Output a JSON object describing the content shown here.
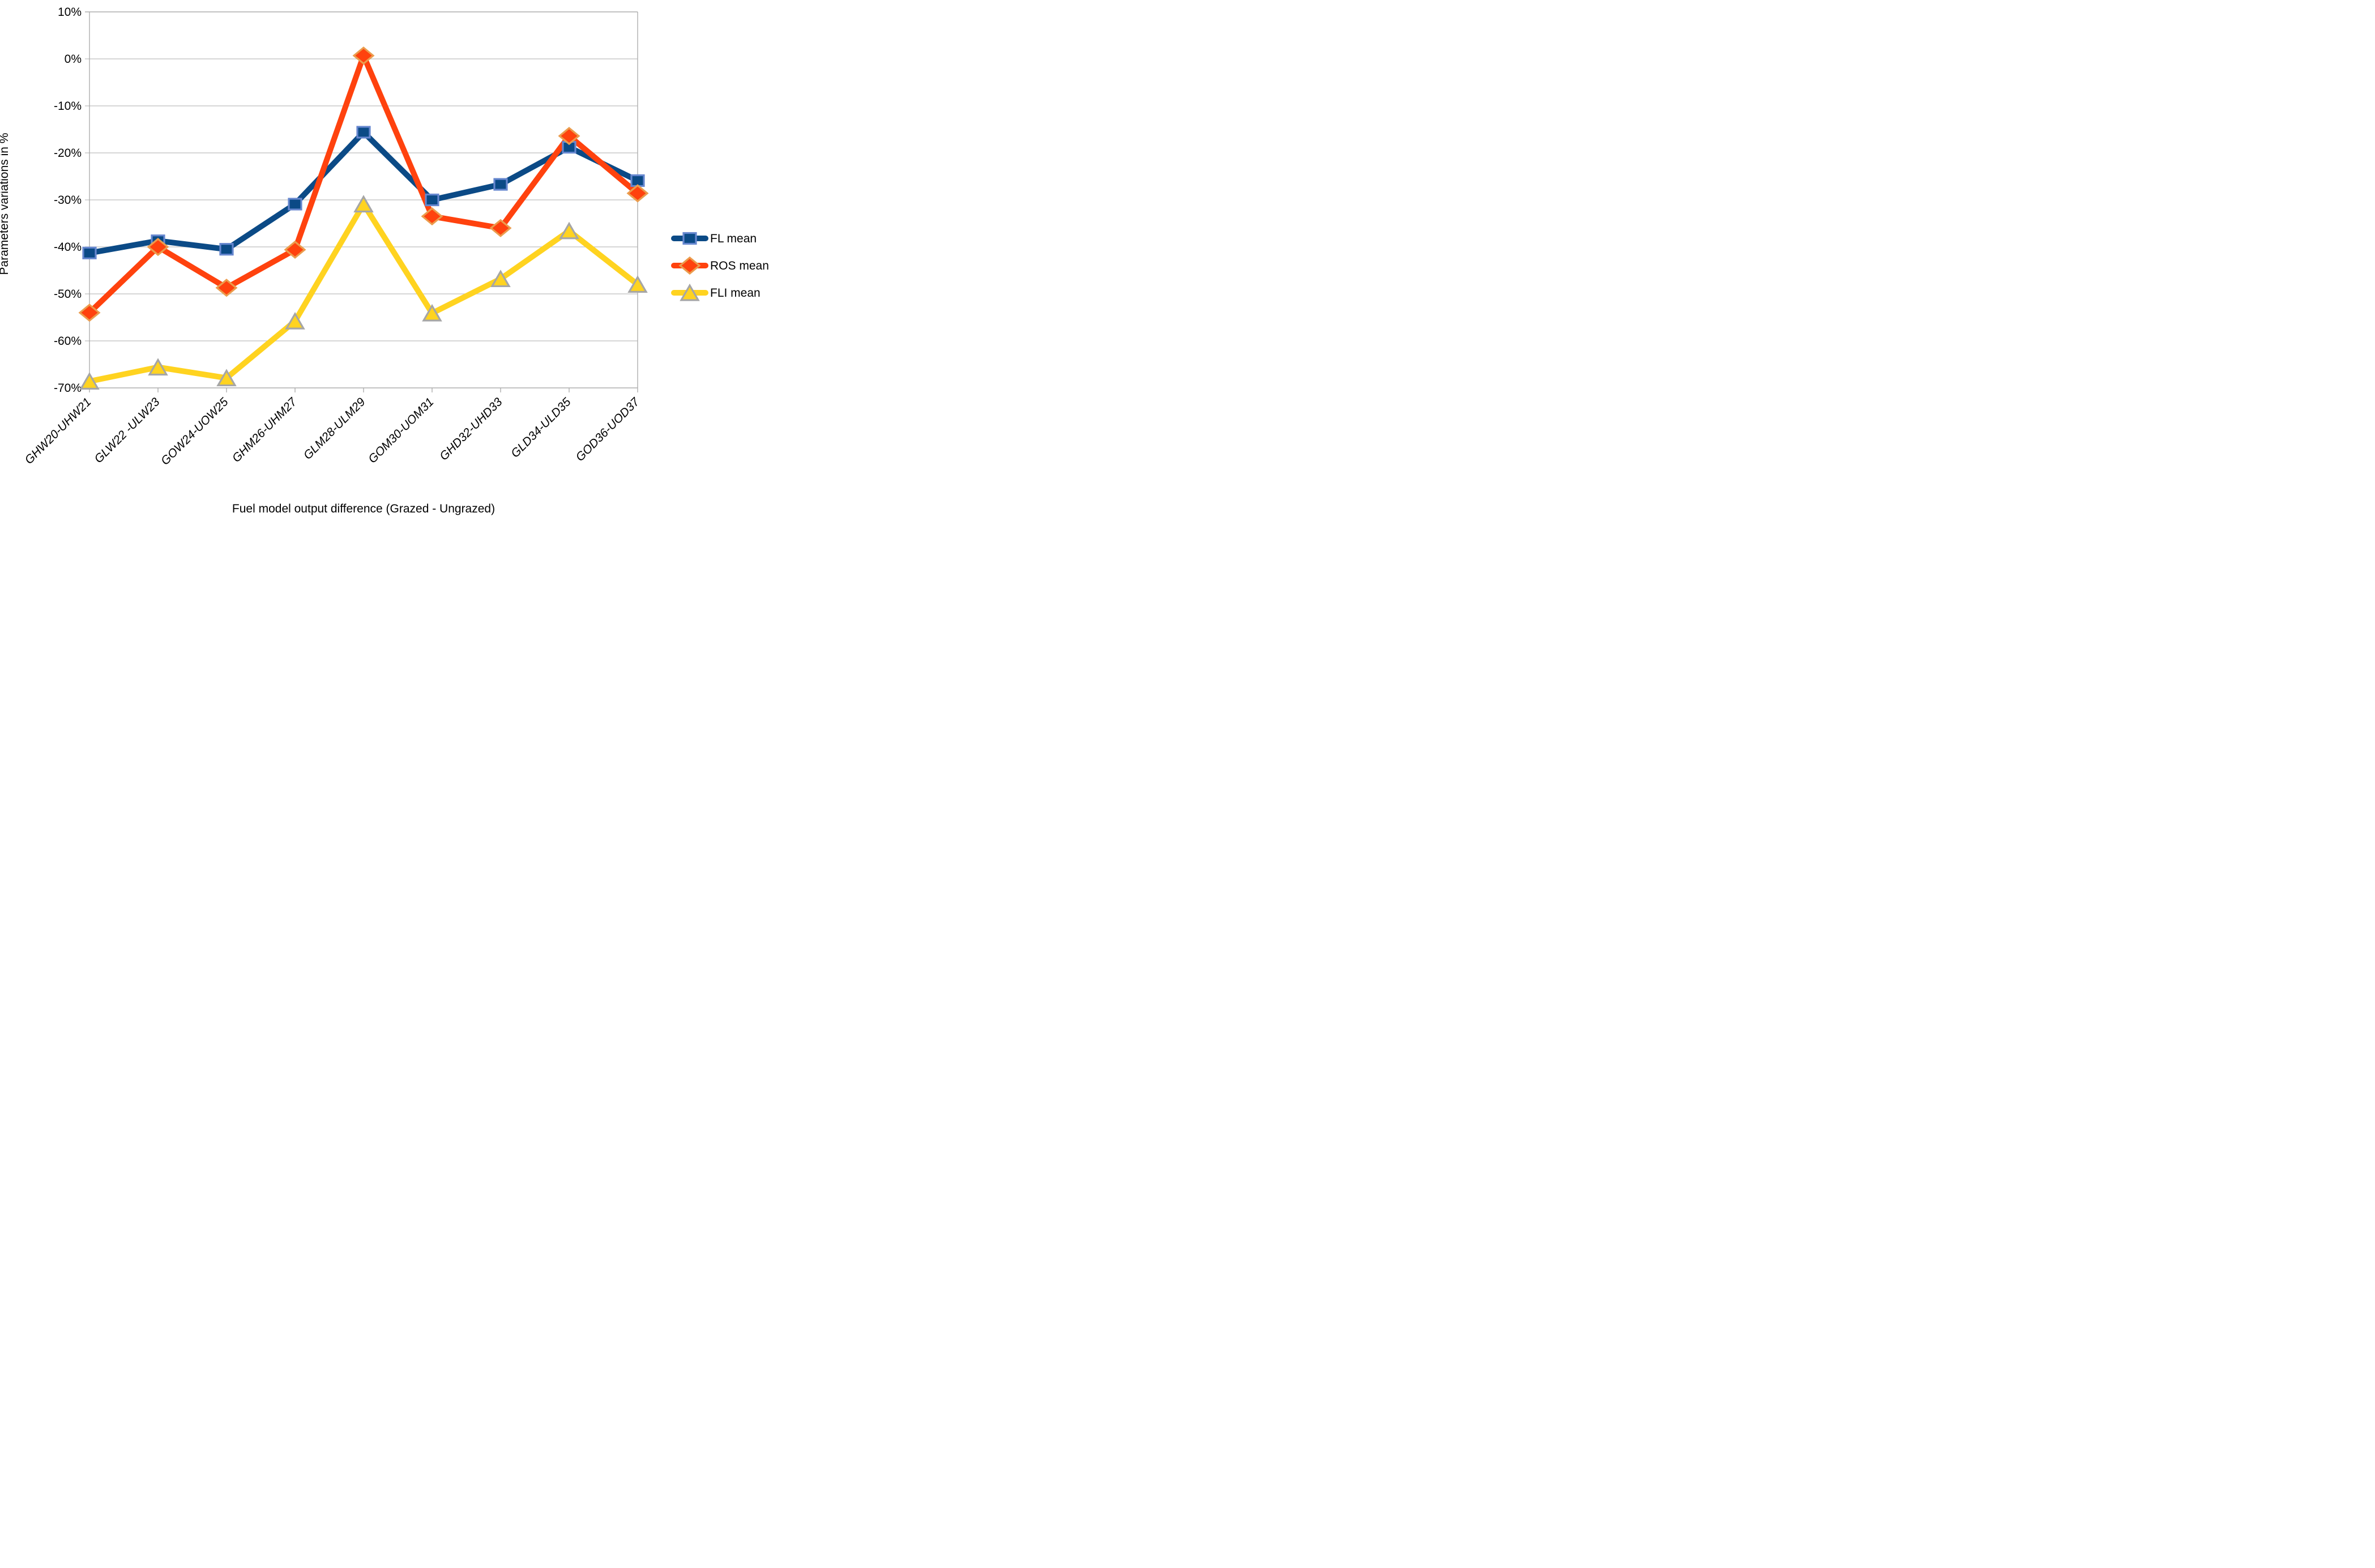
{
  "chart_data": {
    "type": "line",
    "title": "",
    "xlabel": "Fuel model output difference (Grazed - Ungrazed)",
    "ylabel": "Parameters variations in %",
    "categories": [
      "GHW20-UHW21",
      "GLW22 -ULW23",
      "GOW24-UOW25",
      "GHM26-UHM27",
      "GLM28-ULM29",
      "GOM30-UOM31",
      "GHD32-UHD33",
      "GLD34-ULD35",
      "GOD36-UOD37"
    ],
    "series": [
      {
        "name": "FL mean",
        "marker": "square",
        "color": "#0b4a86",
        "marker_border": "#6687cf",
        "values": [
          -41.3,
          -38.7,
          -40.5,
          -30.9,
          -15.6,
          -30.0,
          -26.7,
          -18.8,
          -25.9
        ]
      },
      {
        "name": "ROS mean",
        "marker": "diamond",
        "color": "#ff420e",
        "marker_border": "#eb9c4d",
        "values": [
          -54.0,
          -40.0,
          -48.7,
          -40.6,
          0.7,
          -33.5,
          -36.0,
          -16.4,
          -28.6
        ]
      },
      {
        "name": "FLI mean",
        "marker": "triangle",
        "color": "#ffd320",
        "marker_border": "#a6a6a6",
        "values": [
          -68.6,
          -65.6,
          -67.9,
          -55.8,
          -30.9,
          -54.1,
          -46.8,
          -36.6,
          -48.0
        ]
      }
    ],
    "ylim": [
      -70,
      10
    ],
    "ytick_step": 10,
    "ytick_labels": [
      "10%",
      "0%",
      "-10%",
      "-20%",
      "-30%",
      "-40%",
      "-50%",
      "-60%",
      "-70%"
    ],
    "grid": "horizontal",
    "legend_position": "right"
  },
  "colors": {
    "background": "#ffffff",
    "gridline": "#c9c9c9",
    "axis": "#adadad",
    "text": "#000000"
  }
}
